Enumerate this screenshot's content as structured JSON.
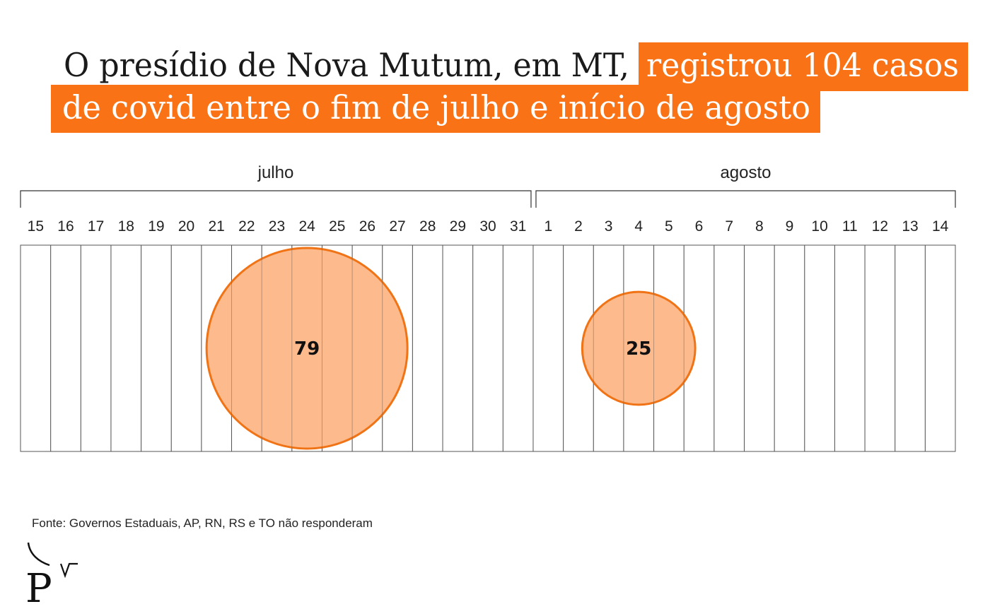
{
  "header": {
    "title_plain": "O presídio de Nova Mutum, em MT,",
    "title_highlight_1": "registrou 104 casos",
    "title_highlight_2": "de covid entre o fim de julho e início de agosto"
  },
  "colors": {
    "accent": "#f97316",
    "bubble_fill": "#fdb583",
    "bubble_stroke": "#f07316",
    "grid": "#555555"
  },
  "chart_data": {
    "type": "bubble-timeline",
    "months": [
      {
        "label": "julho",
        "days": [
          "15",
          "16",
          "17",
          "18",
          "19",
          "20",
          "21",
          "22",
          "23",
          "24",
          "25",
          "26",
          "27",
          "28",
          "29",
          "30",
          "31"
        ]
      },
      {
        "label": "agosto",
        "days": [
          "1",
          "2",
          "3",
          "4",
          "5",
          "6",
          "7",
          "8",
          "9",
          "10",
          "11",
          "12",
          "13",
          "14"
        ]
      }
    ],
    "points": [
      {
        "month": "julho",
        "day": "24",
        "value": 79,
        "label": "79"
      },
      {
        "month": "agosto",
        "day": "4",
        "value": 25,
        "label": "25"
      }
    ]
  },
  "footer": {
    "source": "Fonte: Governos Estaduais, AP, RN, RS e TO não responderam",
    "logo_letter": "P"
  }
}
